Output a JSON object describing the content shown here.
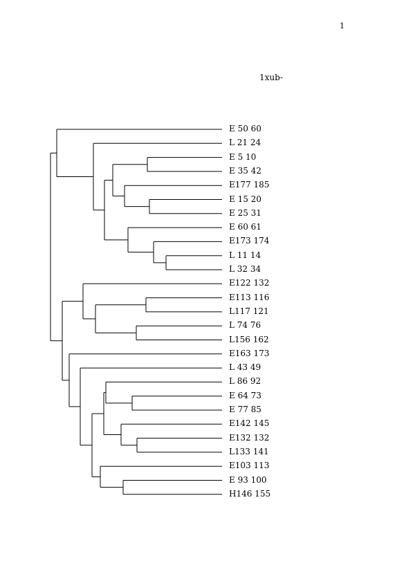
{
  "page_number": "1",
  "title": "1xub-",
  "leaves": [
    "E 50 60",
    "L 21 24",
    "E 5 10",
    "E 35 42",
    "E177 185",
    "E 15 20",
    "E 25 31",
    "E 60 61",
    "E173 174",
    "L 11 14",
    "L 32 34",
    "E122 132",
    "E113 116",
    "L117 121",
    "L 74 76",
    "L156 162",
    "E163 173",
    "L 43 49",
    "L 86 92",
    "E 64 73",
    "E 77 85",
    "E142 145",
    "E132 132",
    "L133 141",
    "E103 113",
    "E 93 100",
    "H146 155"
  ]
}
